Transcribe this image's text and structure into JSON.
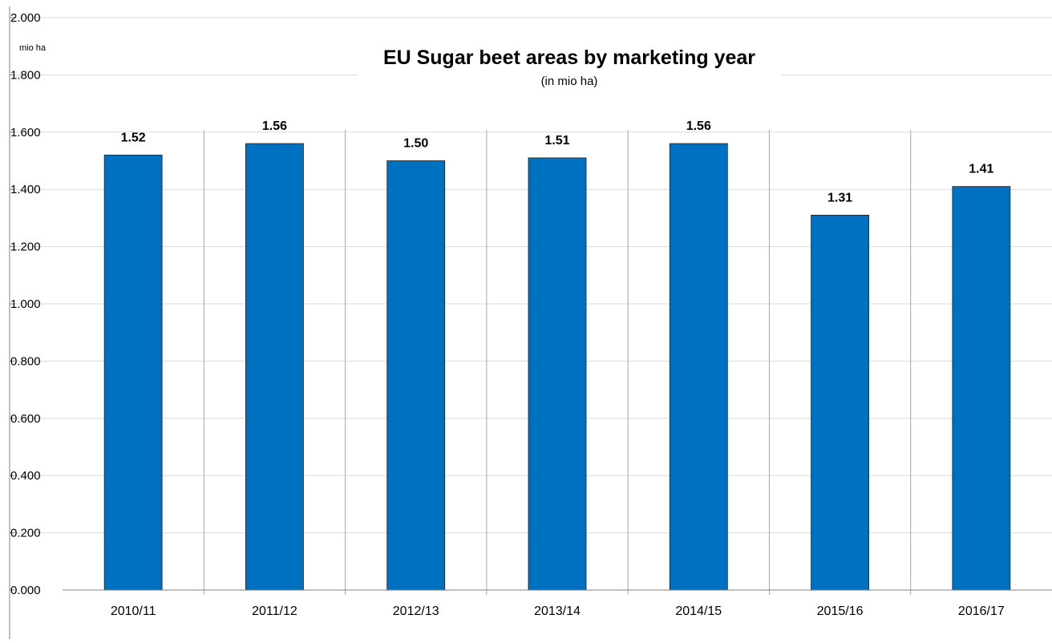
{
  "chart_data": {
    "type": "bar",
    "title": "EU Sugar beet areas by marketing year",
    "subtitle": "(in mio  ha)",
    "unit_label": "mio ha",
    "categories": [
      "2010/11",
      "2011/12",
      "2012/13",
      "2013/14",
      "2014/15",
      "2015/16",
      "2016/17"
    ],
    "values": [
      1.52,
      1.56,
      1.5,
      1.51,
      1.56,
      1.31,
      1.41
    ],
    "data_labels": [
      "1.52",
      "1.56",
      "1.50",
      "1.51",
      "1.56",
      "1.31",
      "1.41"
    ],
    "y_ticks": [
      "0.000",
      "0.200",
      "0.400",
      "0.600",
      "0.800",
      "1.000",
      "1.200",
      "1.400",
      "1.600",
      "1.800",
      "2.000"
    ],
    "ylim": [
      0,
      2
    ],
    "grid": true,
    "legend": "none",
    "bar_color": "#0070C0"
  }
}
